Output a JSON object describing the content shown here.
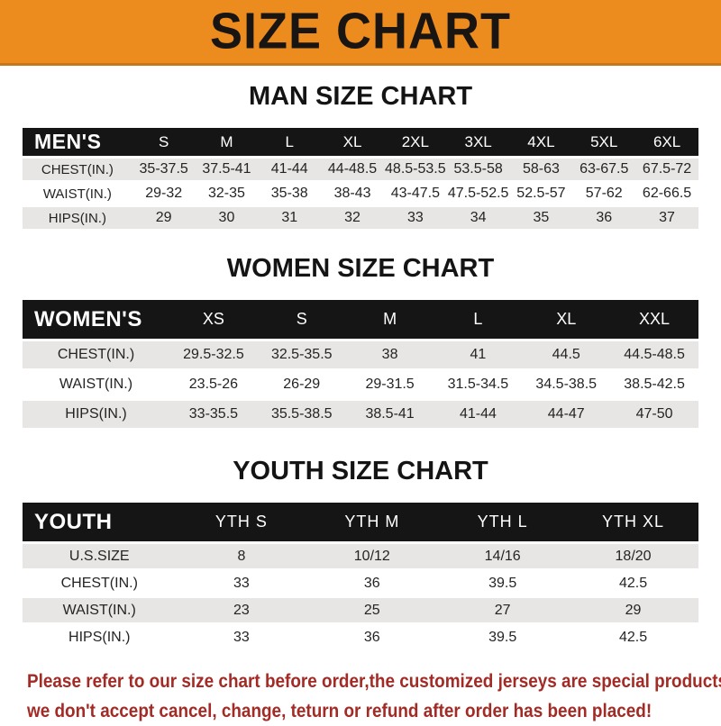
{
  "banner": {
    "title": "SIZE CHART"
  },
  "sections": [
    {
      "id": "men",
      "title": "MAN SIZE CHART",
      "header_label": "MEN'S",
      "columns": [
        "S",
        "M",
        "L",
        "XL",
        "2XL",
        "3XL",
        "4XL",
        "5XL",
        "6XL"
      ],
      "rows": [
        {
          "label": "CHEST(IN.)",
          "values": [
            "35-37.5",
            "37.5-41",
            "41-44",
            "44-48.5",
            "48.5-53.5",
            "53.5-58",
            "58-63",
            "63-67.5",
            "67.5-72"
          ]
        },
        {
          "label": "WAIST(IN.)",
          "values": [
            "29-32",
            "32-35",
            "35-38",
            "38-43",
            "43-47.5",
            "47.5-52.5",
            "52.5-57",
            "57-62",
            "62-66.5"
          ]
        },
        {
          "label": "HIPS(IN.)",
          "values": [
            "29",
            "30",
            "31",
            "32",
            "33",
            "34",
            "35",
            "36",
            "37"
          ]
        }
      ]
    },
    {
      "id": "women",
      "title": "WOMEN SIZE CHART",
      "header_label": "WOMEN'S",
      "columns": [
        "XS",
        "S",
        "M",
        "L",
        "XL",
        "XXL"
      ],
      "rows": [
        {
          "label": "CHEST(IN.)",
          "values": [
            "29.5-32.5",
            "32.5-35.5",
            "38",
            "41",
            "44.5",
            "44.5-48.5"
          ]
        },
        {
          "label": "WAIST(IN.)",
          "values": [
            "23.5-26",
            "26-29",
            "29-31.5",
            "31.5-34.5",
            "34.5-38.5",
            "38.5-42.5"
          ]
        },
        {
          "label": "HIPS(IN.)",
          "values": [
            "33-35.5",
            "35.5-38.5",
            "38.5-41",
            "41-44",
            "44-47",
            "47-50"
          ]
        }
      ]
    },
    {
      "id": "youth",
      "title": "YOUTH SIZE CHART",
      "header_label": "YOUTH",
      "columns": [
        "YTH S",
        "YTH M",
        "YTH L",
        "YTH XL"
      ],
      "rows": [
        {
          "label": "U.S.SIZE",
          "values": [
            "8",
            "10/12",
            "14/16",
            "18/20"
          ]
        },
        {
          "label": "CHEST(IN.)",
          "values": [
            "33",
            "36",
            "39.5",
            "42.5"
          ]
        },
        {
          "label": "WAIST(IN.)",
          "values": [
            "23",
            "25",
            "27",
            "29"
          ]
        },
        {
          "label": "HIPS(IN.)",
          "values": [
            "33",
            "36",
            "39.5",
            "42.5"
          ]
        }
      ]
    }
  ],
  "footer": {
    "lines": [
      "Please refer to our size chart before order,the customized jerseys are special products,",
      "we don't accept cancel, change, teturn or refund after order has been placed!"
    ]
  },
  "colors": {
    "banner_bg": "#EC8B1E",
    "banner_border": "#C9761B",
    "header_bar": "#151515",
    "row_gray": "#E7E6E4",
    "footer_red": "#A32B26"
  }
}
